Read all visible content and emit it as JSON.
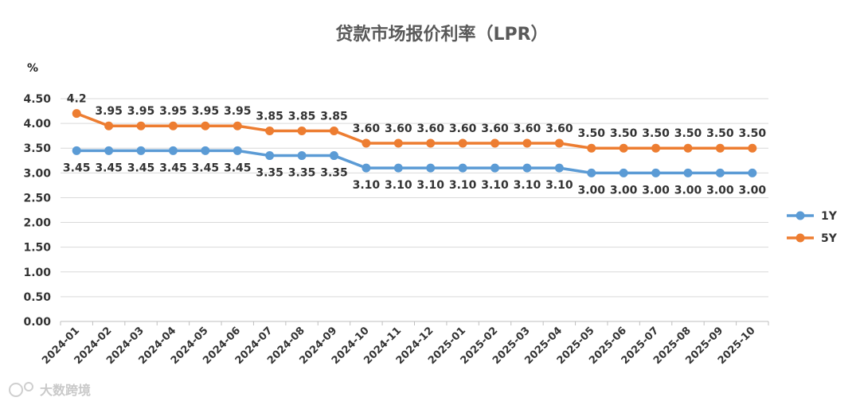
{
  "chart_data": {
    "type": "line",
    "title": "贷款市场报价利率（LPR）",
    "ylabel": "%",
    "ylim": [
      0,
      4.5
    ],
    "yticks": [
      "0.00",
      "0.50",
      "1.00",
      "1.50",
      "2.00",
      "2.50",
      "3.00",
      "3.50",
      "4.00",
      "4.50"
    ],
    "grid": true,
    "legend": "right",
    "categories": [
      "2024-01",
      "2024-02",
      "2024-03",
      "2024-04",
      "2024-05",
      "2024-06",
      "2024-07",
      "2024-08",
      "2024-09",
      "2024-10",
      "2024-11",
      "2024-12",
      "2025-01",
      "2025-02",
      "2025-03",
      "2025-04",
      "2025-05",
      "2025-06",
      "2025-07",
      "2025-08",
      "2025-09",
      "2025-10"
    ],
    "series": [
      {
        "name": "1Y",
        "color": "#5B9BD5",
        "values": [
          3.45,
          3.45,
          3.45,
          3.45,
          3.45,
          3.45,
          3.35,
          3.35,
          3.35,
          3.1,
          3.1,
          3.1,
          3.1,
          3.1,
          3.1,
          3.1,
          3.0,
          3.0,
          3.0,
          3.0,
          3.0,
          3.0
        ],
        "labels": [
          "3.45",
          "3.45",
          "3.45",
          "3.45",
          "3.45",
          "3.45",
          "3.35",
          "3.35",
          "3.35",
          "3.10",
          "3.10",
          "3.10",
          "3.10",
          "3.10",
          "3.10",
          "3.10",
          "3.00",
          "3.00",
          "3.00",
          "3.00",
          "3.00",
          "3.00"
        ]
      },
      {
        "name": "5Y",
        "color": "#ED7D31",
        "values": [
          4.2,
          3.95,
          3.95,
          3.95,
          3.95,
          3.95,
          3.85,
          3.85,
          3.85,
          3.6,
          3.6,
          3.6,
          3.6,
          3.6,
          3.6,
          3.6,
          3.5,
          3.5,
          3.5,
          3.5,
          3.5,
          3.5
        ],
        "labels": [
          "4.2",
          "3.95",
          "3.95",
          "3.95",
          "3.95",
          "3.95",
          "3.85",
          "3.85",
          "3.85",
          "3.60",
          "3.60",
          "3.60",
          "3.60",
          "3.60",
          "3.60",
          "3.60",
          "3.50",
          "3.50",
          "3.50",
          "3.50",
          "3.50",
          "3.50"
        ]
      }
    ]
  },
  "watermark": "大数跨境"
}
